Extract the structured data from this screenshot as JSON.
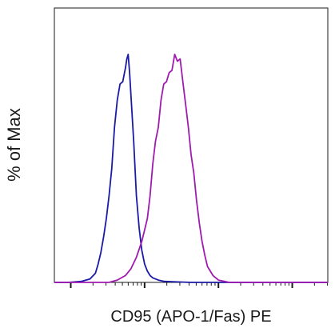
{
  "chart_data": {
    "type": "line",
    "title": "",
    "xlabel": "CD95 (APO-1/Fas) PE",
    "ylabel": "% of Max",
    "xscale": "log",
    "x_decades": 4,
    "ylim": [
      0,
      100
    ],
    "grid": false,
    "legend": "none",
    "series": [
      {
        "color": "#1a1aa6",
        "x": [
          0.0,
          0.05,
          0.1,
          0.13,
          0.15,
          0.16,
          0.17,
          0.18,
          0.19,
          0.2,
          0.21,
          0.22,
          0.23,
          0.24,
          0.25,
          0.255,
          0.26,
          0.265,
          0.27,
          0.275,
          0.28,
          0.285,
          0.29,
          0.295,
          0.3,
          0.31,
          0.32,
          0.33,
          0.34,
          0.35,
          0.36,
          0.38,
          0.4,
          0.45,
          0.5,
          1.0
        ],
        "y": [
          0,
          0,
          0.5,
          1.5,
          4,
          8,
          13,
          20,
          28,
          38,
          50,
          68,
          80,
          87,
          88,
          91,
          94,
          98,
          100,
          92,
          82,
          72,
          62,
          50,
          38,
          24,
          14,
          8,
          5,
          3,
          2,
          1,
          0.5,
          0.2,
          0,
          0
        ]
      },
      {
        "color": "#a01ab0",
        "x": [
          0.0,
          0.2,
          0.23,
          0.26,
          0.28,
          0.3,
          0.32,
          0.34,
          0.35,
          0.36,
          0.37,
          0.38,
          0.39,
          0.4,
          0.41,
          0.42,
          0.43,
          0.44,
          0.45,
          0.46,
          0.47,
          0.48,
          0.49,
          0.5,
          0.51,
          0.52,
          0.53,
          0.54,
          0.55,
          0.56,
          0.58,
          0.6,
          0.64,
          1.0
        ],
        "y": [
          0,
          0,
          1,
          3,
          6,
          11,
          18,
          28,
          38,
          52,
          62,
          68,
          80,
          87,
          88,
          92,
          93,
          100,
          97,
          98,
          88,
          78,
          68,
          56,
          48,
          36,
          26,
          18,
          12,
          7,
          3,
          1,
          0,
          0
        ]
      }
    ]
  }
}
